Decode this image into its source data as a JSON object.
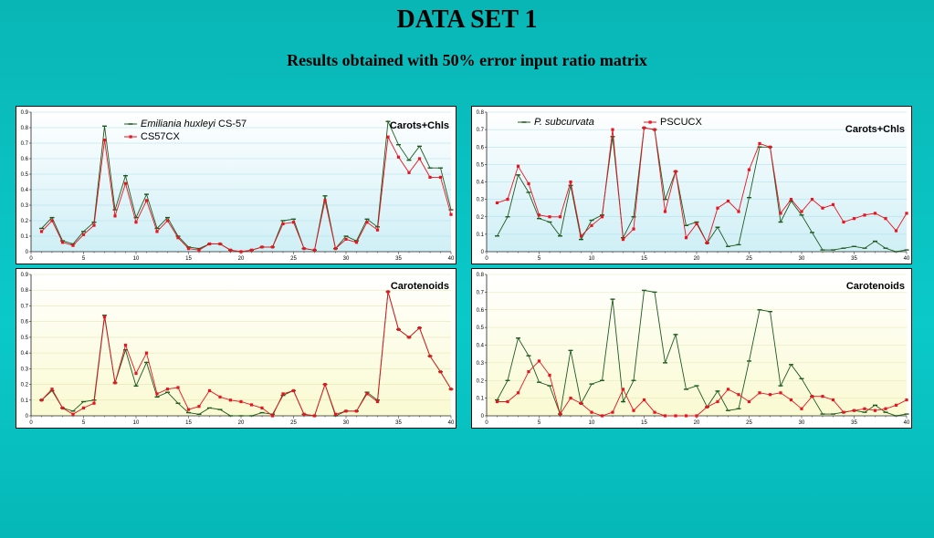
{
  "page": {
    "title": "DATA SET 1",
    "subtitle": "Results obtained with 50% error input ratio matrix"
  },
  "colors": {
    "series_green": "#1e5a1e",
    "series_red": "#e8141e",
    "plot_bg_top_chart": "#cfeff6",
    "plot_bg_bottom_chart": "#fafad2"
  },
  "chart_data": [
    {
      "type": "line",
      "panel": "top-left",
      "label": "Carots+Chls",
      "legend_position": "top-center",
      "xlim": [
        0,
        40
      ],
      "ylim": [
        0,
        0.9
      ],
      "xticks": [
        0,
        5,
        10,
        15,
        20,
        25,
        30,
        35,
        40
      ],
      "yticks": [
        0,
        0.1,
        0.2,
        0.3,
        0.4,
        0.5,
        0.6,
        0.7,
        0.8,
        0.9
      ],
      "series": [
        {
          "name": "Emiliania huxleyi CS-57",
          "name_italic": "Emiliania huxleyi",
          "name_rest": " CS-57",
          "color": "#1e5a1e",
          "marker": "dash",
          "x": [
            1,
            2,
            3,
            4,
            5,
            6,
            7,
            8,
            9,
            10,
            11,
            12,
            13,
            14,
            15,
            16,
            17,
            18,
            19,
            20,
            21,
            22,
            23,
            24,
            25,
            26,
            27,
            28,
            29,
            30,
            31,
            32,
            33,
            34,
            35,
            36,
            37,
            38,
            39,
            40
          ],
          "y": [
            0.15,
            0.22,
            0.07,
            0.05,
            0.13,
            0.19,
            0.81,
            0.27,
            0.49,
            0.22,
            0.37,
            0.15,
            0.22,
            0.1,
            0.03,
            0.02,
            0.05,
            0.05,
            0.01,
            0.0,
            0.01,
            0.03,
            0.03,
            0.2,
            0.21,
            0.02,
            0.01,
            0.36,
            0.02,
            0.1,
            0.07,
            0.21,
            0.16,
            0.84,
            0.69,
            0.59,
            0.68,
            0.54,
            0.54,
            0.27
          ]
        },
        {
          "name": "CS57CX",
          "color": "#e8141e",
          "marker": "square",
          "x": [
            1,
            2,
            3,
            4,
            5,
            6,
            7,
            8,
            9,
            10,
            11,
            12,
            13,
            14,
            15,
            16,
            17,
            18,
            19,
            20,
            21,
            22,
            23,
            24,
            25,
            26,
            27,
            28,
            29,
            30,
            31,
            32,
            33,
            34,
            35,
            36,
            37,
            38,
            39,
            40
          ],
          "y": [
            0.13,
            0.2,
            0.06,
            0.04,
            0.11,
            0.17,
            0.72,
            0.23,
            0.44,
            0.19,
            0.33,
            0.13,
            0.2,
            0.09,
            0.02,
            0.01,
            0.05,
            0.05,
            0.01,
            0.0,
            0.01,
            0.03,
            0.03,
            0.18,
            0.19,
            0.02,
            0.01,
            0.33,
            0.02,
            0.08,
            0.06,
            0.19,
            0.14,
            0.74,
            0.61,
            0.51,
            0.6,
            0.48,
            0.48,
            0.24
          ]
        }
      ]
    },
    {
      "type": "line",
      "panel": "top-right",
      "label": "Carots+Chls",
      "legend_position": "top",
      "xlim": [
        0,
        40
      ],
      "ylim": [
        0,
        0.8
      ],
      "xticks": [
        0,
        5,
        10,
        15,
        20,
        25,
        30,
        35,
        40
      ],
      "yticks": [
        0,
        0.1,
        0.2,
        0.3,
        0.4,
        0.5,
        0.6,
        0.7,
        0.8
      ],
      "series": [
        {
          "name": "P. subcurvata",
          "name_italic": "P. subcurvata",
          "name_rest": "",
          "color": "#1e5a1e",
          "marker": "dash",
          "x": [
            1,
            2,
            3,
            4,
            5,
            6,
            7,
            8,
            9,
            10,
            11,
            12,
            13,
            14,
            15,
            16,
            17,
            18,
            19,
            20,
            21,
            22,
            23,
            24,
            25,
            26,
            27,
            28,
            29,
            30,
            31,
            32,
            33,
            34,
            35,
            36,
            37,
            38,
            39,
            40
          ],
          "y": [
            0.09,
            0.2,
            0.44,
            0.34,
            0.19,
            0.17,
            0.09,
            0.38,
            0.07,
            0.18,
            0.21,
            0.66,
            0.08,
            0.2,
            0.71,
            0.7,
            0.3,
            0.46,
            0.15,
            0.17,
            0.05,
            0.14,
            0.03,
            0.04,
            0.31,
            0.6,
            0.6,
            0.17,
            0.29,
            0.21,
            0.11,
            0.01,
            0.01,
            0.02,
            0.03,
            0.02,
            0.06,
            0.02,
            0.0,
            0.01
          ]
        },
        {
          "name": "PSCUCX",
          "color": "#e8141e",
          "marker": "square",
          "x": [
            1,
            2,
            3,
            4,
            5,
            6,
            7,
            8,
            9,
            10,
            11,
            12,
            13,
            14,
            15,
            16,
            17,
            18,
            19,
            20,
            21,
            22,
            23,
            24,
            25,
            26,
            27,
            28,
            29,
            30,
            31,
            32,
            33,
            34,
            35,
            36,
            37,
            38,
            39,
            40
          ],
          "y": [
            0.28,
            0.3,
            0.49,
            0.39,
            0.21,
            0.2,
            0.2,
            0.4,
            0.09,
            0.15,
            0.2,
            0.7,
            0.07,
            0.13,
            0.71,
            0.7,
            0.23,
            0.46,
            0.08,
            0.16,
            0.05,
            0.25,
            0.29,
            0.23,
            0.47,
            0.62,
            0.6,
            0.22,
            0.3,
            0.23,
            0.3,
            0.25,
            0.27,
            0.17,
            0.19,
            0.21,
            0.22,
            0.19,
            0.12,
            0.22
          ]
        }
      ]
    },
    {
      "type": "line",
      "panel": "bottom-left",
      "label": "Carotenoids",
      "xlim": [
        0,
        40
      ],
      "ylim": [
        0,
        0.9
      ],
      "xticks": [
        0,
        5,
        10,
        15,
        20,
        25,
        30,
        35,
        40
      ],
      "yticks": [
        0,
        0.1,
        0.2,
        0.3,
        0.4,
        0.5,
        0.6,
        0.7,
        0.8,
        0.9
      ],
      "series": [
        {
          "color": "#1e5a1e",
          "marker": "dash",
          "x": [
            1,
            2,
            3,
            4,
            5,
            6,
            7,
            8,
            9,
            10,
            11,
            12,
            13,
            14,
            15,
            16,
            17,
            18,
            19,
            20,
            21,
            22,
            23,
            24,
            25,
            26,
            27,
            28,
            29,
            30,
            31,
            32,
            33,
            34,
            35,
            36,
            37,
            38,
            39,
            40
          ],
          "y": [
            0.1,
            0.16,
            0.05,
            0.03,
            0.09,
            0.1,
            0.64,
            0.21,
            0.42,
            0.19,
            0.34,
            0.12,
            0.15,
            0.08,
            0.02,
            0.01,
            0.05,
            0.04,
            0.0,
            0.0,
            0.0,
            0.02,
            0.01,
            0.13,
            0.16,
            0.01,
            0.0,
            0.2,
            0.0,
            0.03,
            0.03,
            0.15,
            0.1,
            0.79,
            0.55,
            0.5,
            0.56,
            0.38,
            0.28,
            0.17
          ]
        },
        {
          "color": "#e8141e",
          "marker": "square",
          "x": [
            1,
            2,
            3,
            4,
            5,
            6,
            7,
            8,
            9,
            10,
            11,
            12,
            13,
            14,
            15,
            16,
            17,
            18,
            19,
            20,
            21,
            22,
            23,
            24,
            25,
            26,
            27,
            28,
            29,
            30,
            31,
            32,
            33,
            34,
            35,
            36,
            37,
            38,
            39,
            40
          ],
          "y": [
            0.1,
            0.17,
            0.05,
            0.01,
            0.05,
            0.08,
            0.63,
            0.21,
            0.45,
            0.27,
            0.4,
            0.14,
            0.17,
            0.18,
            0.04,
            0.06,
            0.16,
            0.12,
            0.1,
            0.09,
            0.07,
            0.05,
            0.0,
            0.14,
            0.16,
            0.01,
            0.0,
            0.2,
            0.01,
            0.03,
            0.03,
            0.14,
            0.09,
            0.79,
            0.55,
            0.5,
            0.56,
            0.38,
            0.28,
            0.17
          ]
        }
      ]
    },
    {
      "type": "line",
      "panel": "bottom-right",
      "label": "Carotenoids",
      "xlim": [
        0,
        40
      ],
      "ylim": [
        0,
        0.8
      ],
      "xticks": [
        0,
        5,
        10,
        15,
        20,
        25,
        30,
        35,
        40
      ],
      "yticks": [
        0,
        0.1,
        0.2,
        0.3,
        0.4,
        0.5,
        0.6,
        0.7,
        0.8
      ],
      "series": [
        {
          "color": "#1e5a1e",
          "marker": "dash",
          "x": [
            1,
            2,
            3,
            4,
            5,
            6,
            7,
            8,
            9,
            10,
            11,
            12,
            13,
            14,
            15,
            16,
            17,
            18,
            19,
            20,
            21,
            22,
            23,
            24,
            25,
            26,
            27,
            28,
            29,
            30,
            31,
            32,
            33,
            34,
            35,
            36,
            37,
            38,
            39,
            40
          ],
          "y": [
            0.09,
            0.2,
            0.44,
            0.34,
            0.19,
            0.17,
            0.01,
            0.37,
            0.07,
            0.18,
            0.2,
            0.66,
            0.08,
            0.2,
            0.71,
            0.7,
            0.3,
            0.46,
            0.15,
            0.17,
            0.05,
            0.14,
            0.03,
            0.04,
            0.31,
            0.6,
            0.59,
            0.17,
            0.29,
            0.21,
            0.11,
            0.01,
            0.01,
            0.02,
            0.03,
            0.02,
            0.06,
            0.02,
            0.0,
            0.01
          ]
        },
        {
          "color": "#e8141e",
          "marker": "square",
          "x": [
            1,
            2,
            3,
            4,
            5,
            6,
            7,
            8,
            9,
            10,
            11,
            12,
            13,
            14,
            15,
            16,
            17,
            18,
            19,
            20,
            21,
            22,
            23,
            24,
            25,
            26,
            27,
            28,
            29,
            30,
            31,
            32,
            33,
            34,
            35,
            36,
            37,
            38,
            39,
            40
          ],
          "y": [
            0.08,
            0.08,
            0.13,
            0.25,
            0.31,
            0.23,
            0.01,
            0.1,
            0.07,
            0.02,
            0.0,
            0.02,
            0.15,
            0.03,
            0.09,
            0.02,
            0.0,
            0.0,
            0.0,
            0.0,
            0.05,
            0.08,
            0.15,
            0.12,
            0.08,
            0.13,
            0.12,
            0.13,
            0.09,
            0.04,
            0.11,
            0.11,
            0.09,
            0.02,
            0.03,
            0.04,
            0.03,
            0.04,
            0.06,
            0.09
          ]
        }
      ]
    }
  ]
}
